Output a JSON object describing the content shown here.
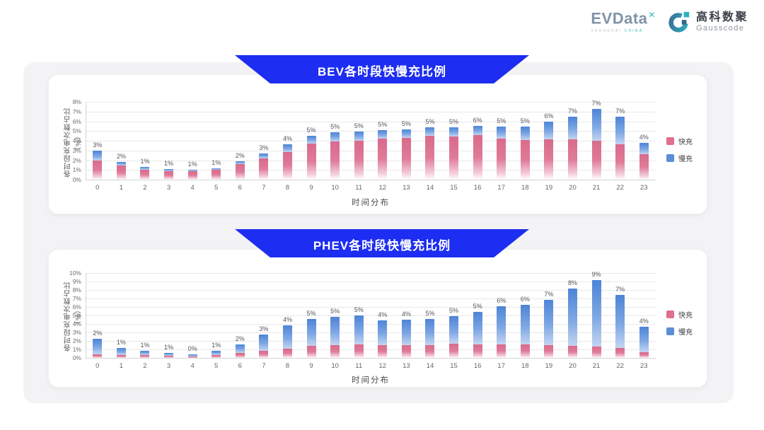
{
  "logo": {
    "evdata_text": "EVData",
    "evdata_mark": "✕",
    "evdata_sub_left": "SHANGHAI ",
    "evdata_sub_right": "CHINA",
    "gausscode_cn": "高科数聚",
    "gausscode_en": "Gausscode"
  },
  "colors": {
    "fast": "#e06e8e",
    "slow": "#5b8ed9",
    "ribbon": "#1d2df1"
  },
  "chart_data": [
    {
      "type": "bar",
      "stacked": true,
      "title": "BEV各时段快慢充比例",
      "xlabel": "时间分布",
      "ylabel": "各时段充电次数占比（%）",
      "ymax": 8,
      "yticks": [
        "0%",
        "1%",
        "2%",
        "3%",
        "4%",
        "5%",
        "6%",
        "7%",
        "8%"
      ],
      "grid": true,
      "legend_position": "right",
      "categories": [
        "0",
        "1",
        "2",
        "3",
        "4",
        "5",
        "6",
        "7",
        "8",
        "9",
        "10",
        "11",
        "12",
        "13",
        "14",
        "15",
        "16",
        "17",
        "18",
        "19",
        "20",
        "21",
        "22",
        "23"
      ],
      "series": [
        {
          "name": "快充",
          "color": "#e06e8e",
          "values": [
            1.95,
            1.45,
            1.0,
            0.85,
            0.9,
            1.0,
            1.6,
            2.2,
            2.85,
            3.7,
            3.9,
            4.0,
            4.25,
            4.3,
            4.5,
            4.45,
            4.55,
            4.2,
            4.1,
            4.15,
            4.15,
            4.0,
            3.65,
            2.6
          ]
        },
        {
          "name": "慢充",
          "color": "#5b8ed9",
          "values": [
            1.0,
            0.35,
            0.3,
            0.25,
            0.1,
            0.2,
            0.3,
            0.5,
            0.8,
            0.8,
            0.95,
            0.95,
            0.85,
            0.85,
            0.85,
            0.9,
            1.0,
            1.25,
            1.35,
            1.8,
            2.35,
            3.25,
            2.85,
            1.2
          ]
        }
      ],
      "total_labels": [
        "3%",
        "2%",
        "1%",
        "1%",
        "1%",
        "1%",
        "2%",
        "3%",
        "4%",
        "5%",
        "5%",
        "5%",
        "5%",
        "5%",
        "5%",
        "5%",
        "6%",
        "5%",
        "5%",
        "6%",
        "7%",
        "7%",
        "7%",
        "4%"
      ]
    },
    {
      "type": "bar",
      "stacked": true,
      "title": "PHEV各时段快慢充比例",
      "xlabel": "时间分布",
      "ylabel": "各时段充电次数占比（%）",
      "ymax": 10,
      "yticks": [
        "0%",
        "1%",
        "2%",
        "3%",
        "4%",
        "5%",
        "6%",
        "7%",
        "8%",
        "9%",
        "10%"
      ],
      "grid": true,
      "legend_position": "right",
      "categories": [
        "0",
        "1",
        "2",
        "3",
        "4",
        "5",
        "6",
        "7",
        "8",
        "9",
        "10",
        "11",
        "12",
        "13",
        "14",
        "15",
        "16",
        "17",
        "18",
        "19",
        "20",
        "21",
        "22",
        "23"
      ],
      "series": [
        {
          "name": "快充",
          "color": "#e06e8e",
          "values": [
            0.45,
            0.35,
            0.3,
            0.25,
            0.15,
            0.3,
            0.6,
            0.8,
            1.05,
            1.4,
            1.5,
            1.6,
            1.5,
            1.5,
            1.5,
            1.65,
            1.6,
            1.55,
            1.6,
            1.5,
            1.4,
            1.3,
            1.15,
            0.7
          ]
        },
        {
          "name": "慢充",
          "color": "#5b8ed9",
          "values": [
            1.8,
            0.85,
            0.5,
            0.35,
            0.3,
            0.55,
            0.95,
            1.95,
            2.8,
            3.2,
            3.35,
            3.4,
            2.9,
            3.0,
            3.1,
            3.3,
            3.8,
            4.5,
            4.65,
            5.3,
            6.75,
            7.85,
            6.3,
            3.0
          ]
        }
      ],
      "total_labels": [
        "2%",
        "1%",
        "1%",
        "1%",
        "0%",
        "1%",
        "2%",
        "3%",
        "4%",
        "5%",
        "5%",
        "5%",
        "4%",
        "4%",
        "5%",
        "5%",
        "5%",
        "6%",
        "6%",
        "7%",
        "8%",
        "9%",
        "7%",
        "4%"
      ]
    }
  ]
}
